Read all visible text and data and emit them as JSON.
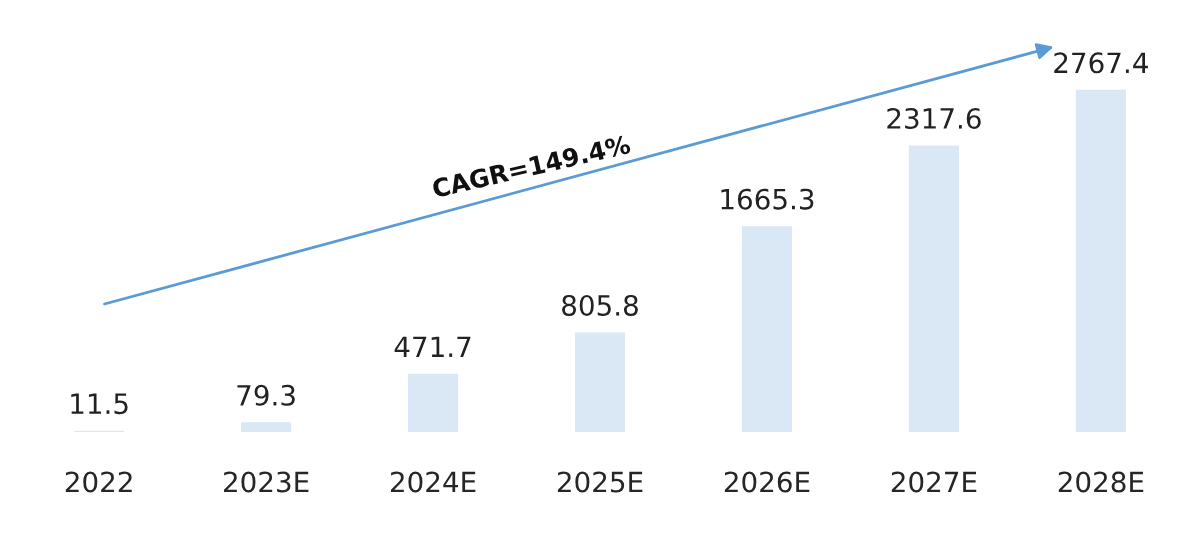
{
  "chart_data": {
    "type": "bar",
    "categories": [
      "2022",
      "2023E",
      "2024E",
      "2025E",
      "2026E",
      "2027E",
      "2028E"
    ],
    "values": [
      11.5,
      79.3,
      471.7,
      805.8,
      1665.3,
      2317.6,
      2767.4
    ],
    "color": "#dae7f5",
    "data_labels": true,
    "annotations": [
      "CAGR=149.4%"
    ]
  }
}
